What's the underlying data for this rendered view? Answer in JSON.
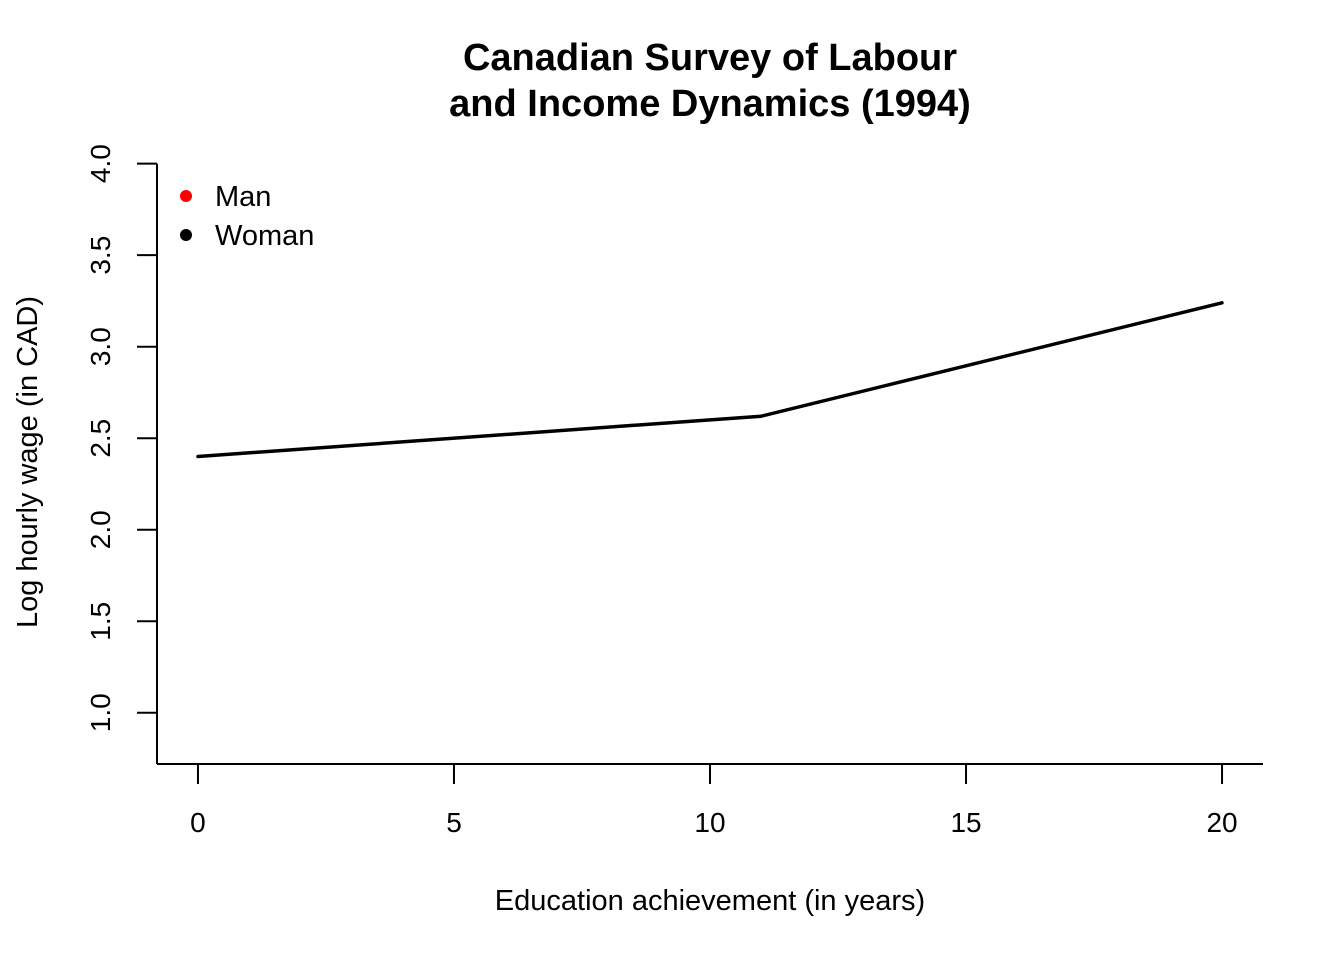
{
  "chart_data": {
    "type": "line",
    "title_lines": [
      "Canadian Survey of Labour",
      "and Income Dynamics (1994)"
    ],
    "xlabel": "Education achievement (in years)",
    "ylabel": "Log hourly wage (in CAD)",
    "xlim": [
      -0.8,
      20.8
    ],
    "ylim": [
      0.72,
      4.02
    ],
    "x_ticks": [
      0,
      5,
      10,
      15,
      20
    ],
    "x_tick_labels": [
      "0",
      "5",
      "10",
      "15",
      "20"
    ],
    "y_ticks": [
      1.0,
      1.5,
      2.0,
      2.5,
      3.0,
      3.5,
      4.0
    ],
    "y_tick_labels": [
      "1.0",
      "1.5",
      "2.0",
      "2.5",
      "3.0",
      "3.5",
      "4.0"
    ],
    "legend": {
      "position": "top-left",
      "entries": [
        {
          "label": "Man",
          "color": "#ff0000"
        },
        {
          "label": "Woman",
          "color": "#000000"
        }
      ]
    },
    "series": [
      {
        "legend_entry": "Woman",
        "color": "#000000",
        "x": [
          0,
          11,
          20
        ],
        "y": [
          2.4,
          2.62,
          3.24
        ]
      }
    ],
    "grid": false
  }
}
